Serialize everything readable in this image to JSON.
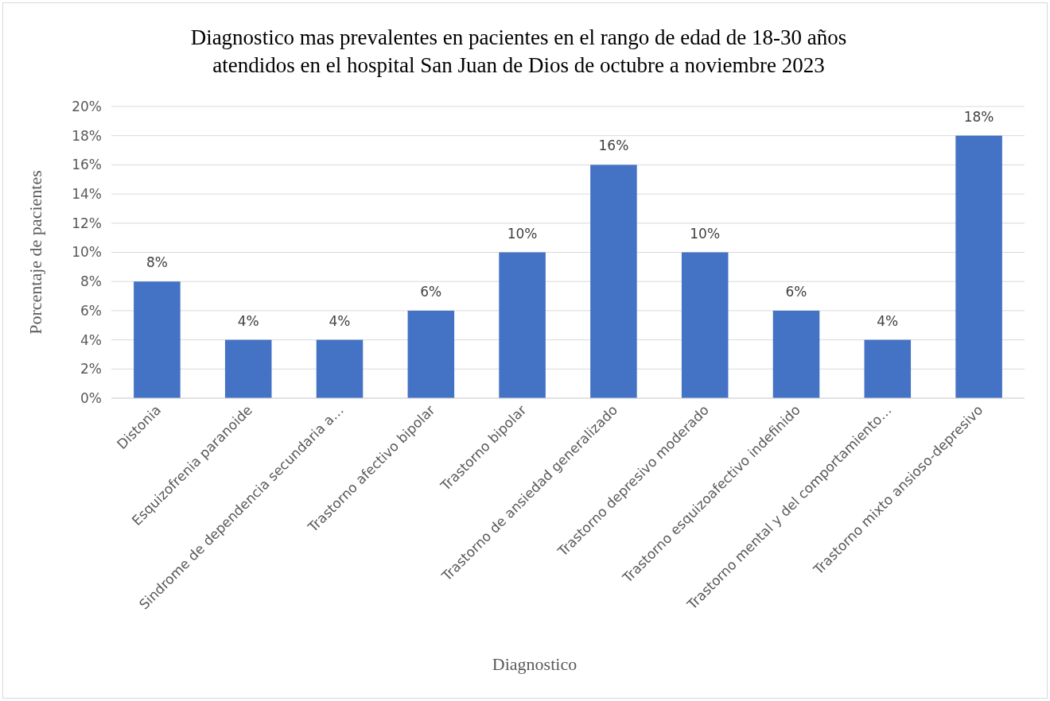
{
  "chart_data": {
    "type": "bar",
    "title": "Diagnostico mas prevalentes en pacientes en el rango de  edad de 18-30 años\natendidos en el hospital San Juan de Dios de octubre a noviembre 2023",
    "xlabel": "Diagnostico",
    "ylabel": "Porcentaje de pacientes",
    "categories": [
      "Distonia",
      "Esquizofrenia paranoide",
      "Sindrome de dependencia secundaria a…",
      "Trastorno afectivo bipolar",
      "Trastorno bipolar",
      "Trastorno de ansiedad generalizado",
      "Trastorno depresivo moderado",
      "Trastorno esquizoafectivo indefinido",
      "Trastorno mental y del comportamiento…",
      "Trastorno mixto ansioso-depresivo"
    ],
    "values": [
      8,
      4,
      4,
      6,
      10,
      16,
      10,
      6,
      4,
      18
    ],
    "value_labels": [
      "8%",
      "4%",
      "4%",
      "6%",
      "10%",
      "16%",
      "10%",
      "6%",
      "4%",
      "18%"
    ],
    "color": "#4472c4",
    "ylim": [
      0,
      20
    ],
    "yticks": [
      {
        "value": 0,
        "label": "0%"
      },
      {
        "value": 2,
        "label": "2%"
      },
      {
        "value": 4,
        "label": "4%"
      },
      {
        "value": 6,
        "label": "6%"
      },
      {
        "value": 8,
        "label": "8%"
      },
      {
        "value": 10,
        "label": "10%"
      },
      {
        "value": 12,
        "label": "12%"
      },
      {
        "value": 14,
        "label": "14%"
      },
      {
        "value": 16,
        "label": "16%"
      },
      {
        "value": 18,
        "label": "18%"
      },
      {
        "value": 20,
        "label": "20%"
      }
    ],
    "grid": "y"
  }
}
